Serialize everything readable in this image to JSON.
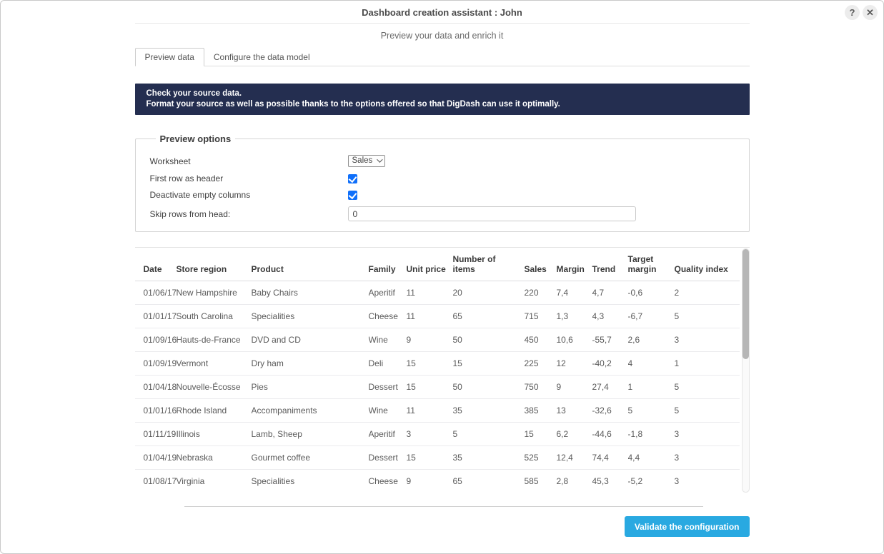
{
  "window": {
    "title": "Dashboard creation assistant : John",
    "subtitle": "Preview your data and enrich it",
    "help_label": "?",
    "close_label": "✕"
  },
  "tabs": [
    {
      "label": "Preview data",
      "active": true
    },
    {
      "label": "Configure the data model",
      "active": false
    }
  ],
  "banner": {
    "line1": "Check your source data.",
    "line2": "Format your source as well as possible thanks to the options offered so that DigDash can use it optimally."
  },
  "preview_options": {
    "legend": "Preview options",
    "worksheet_label": "Worksheet",
    "worksheet_value": "Sales",
    "first_row_label": "First row as header",
    "first_row_checked": true,
    "deactivate_label": "Deactivate empty columns",
    "deactivate_checked": true,
    "skip_rows_label": "Skip rows from head:",
    "skip_rows_value": "0"
  },
  "table": {
    "columns": [
      "Date",
      "Store region",
      "Product",
      "Family",
      "Unit price",
      "Number of items",
      "Sales",
      "Margin",
      "Trend",
      "Target margin",
      "Quality index"
    ],
    "rows": [
      [
        "01/06/17",
        "New Hampshire",
        "Baby Chairs",
        "Aperitif",
        "11",
        "20",
        "220",
        "7,4",
        "4,7",
        "-0,6",
        "2"
      ],
      [
        "01/01/17",
        "South Carolina",
        "Specialities",
        "Cheese",
        "11",
        "65",
        "715",
        "1,3",
        "4,3",
        "-6,7",
        "5"
      ],
      [
        "01/09/16",
        "Hauts-de-France",
        "DVD and CD",
        "Wine",
        "9",
        "50",
        "450",
        "10,6",
        "-55,7",
        "2,6",
        "3"
      ],
      [
        "01/09/19",
        "Vermont",
        "Dry ham",
        "Deli",
        "15",
        "15",
        "225",
        "12",
        "-40,2",
        "4",
        "1"
      ],
      [
        "01/04/18",
        "Nouvelle-Écosse",
        "Pies",
        "Dessert",
        "15",
        "50",
        "750",
        "9",
        "27,4",
        "1",
        "5"
      ],
      [
        "01/01/16",
        "Rhode Island",
        "Accompaniments",
        "Wine",
        "11",
        "35",
        "385",
        "13",
        "-32,6",
        "5",
        "5"
      ],
      [
        "01/11/19",
        "Illinois",
        "Lamb, Sheep",
        "Aperitif",
        "3",
        "5",
        "15",
        "6,2",
        "-44,6",
        "-1,8",
        "3"
      ],
      [
        "01/04/19",
        "Nebraska",
        "Gourmet coffee",
        "Dessert",
        "15",
        "35",
        "525",
        "12,4",
        "74,4",
        "4,4",
        "3"
      ],
      [
        "01/08/17",
        "Virginia",
        "Specialities",
        "Cheese",
        "9",
        "65",
        "585",
        "2,8",
        "45,3",
        "-5,2",
        "3"
      ]
    ]
  },
  "footer": {
    "validate_label": "Validate the configuration"
  },
  "colors": {
    "banner_bg": "#242e50",
    "button_bg": "#29a9e1",
    "checkbox_blue": "#0f6ffa"
  }
}
